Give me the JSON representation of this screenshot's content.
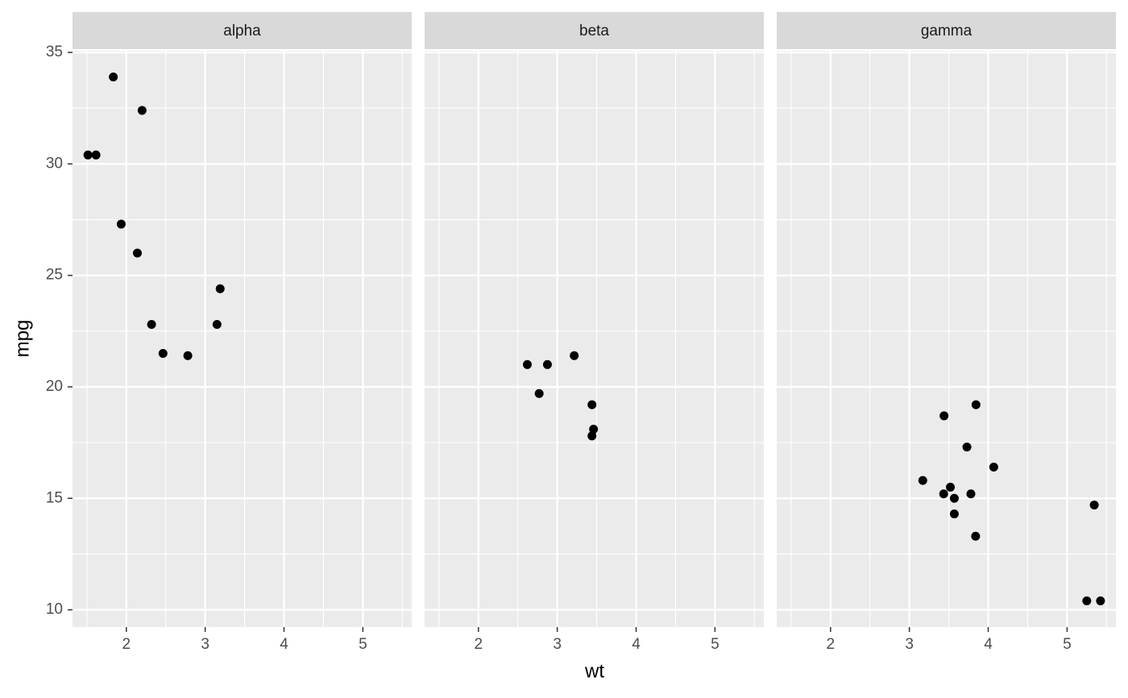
{
  "chart_data": {
    "type": "scatter",
    "x_label": "wt",
    "y_label": "mpg",
    "xlim": [
      1.31745,
      5.61955
    ],
    "ylim": [
      9.225,
      35.075
    ],
    "xticks": [
      2,
      3,
      4,
      5
    ],
    "yticks": [
      10,
      15,
      20,
      25,
      30,
      35
    ],
    "grid": true,
    "color": "#000000",
    "panels": [
      {
        "title": "alpha",
        "x": [
          2.32,
          3.19,
          3.15,
          2.2,
          1.615,
          1.835,
          2.465,
          1.935,
          2.14,
          1.513,
          2.78
        ],
        "y": [
          22.8,
          24.4,
          22.8,
          32.4,
          30.4,
          33.9,
          21.5,
          27.3,
          26.0,
          30.4,
          21.4
        ]
      },
      {
        "title": "beta",
        "x": [
          2.62,
          2.875,
          3.215,
          3.46,
          3.44,
          3.44,
          2.77
        ],
        "y": [
          21.0,
          21.0,
          21.4,
          18.1,
          19.2,
          17.8,
          19.7
        ]
      },
      {
        "title": "gamma",
        "x": [
          3.44,
          3.57,
          4.07,
          3.73,
          3.78,
          5.25,
          5.424,
          5.345,
          3.52,
          3.435,
          3.84,
          3.845,
          3.17,
          3.57
        ],
        "y": [
          18.7,
          14.3,
          16.4,
          17.3,
          15.2,
          10.4,
          10.4,
          14.7,
          15.5,
          15.2,
          13.3,
          19.2,
          15.8,
          15.0
        ]
      }
    ]
  }
}
